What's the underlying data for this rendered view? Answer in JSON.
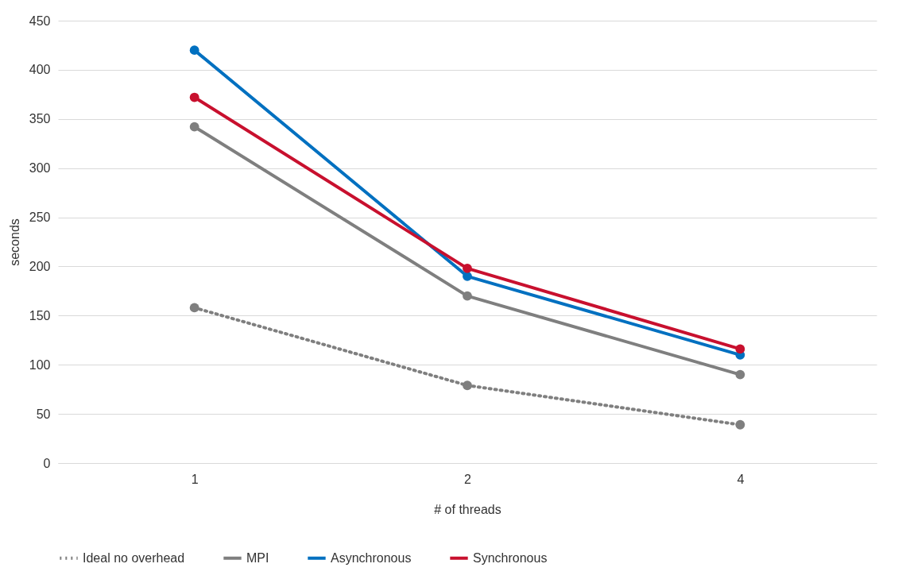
{
  "chart_data": {
    "type": "line",
    "xlabel": "# of threads",
    "ylabel": "seconds",
    "categories": [
      "1",
      "2",
      "4"
    ],
    "ylim": [
      0,
      450
    ],
    "yticks": [
      0,
      50,
      100,
      150,
      200,
      250,
      300,
      350,
      400,
      450
    ],
    "grid": "y",
    "legend": "bottom",
    "marker": "circle",
    "series": [
      {
        "name": "Ideal no overhead",
        "color": "#7f7f7f",
        "line_style": "dotted",
        "values": [
          158,
          79,
          39
        ]
      },
      {
        "name": "MPI",
        "color": "#7f7f7f",
        "line_style": "solid",
        "values": [
          342,
          170,
          90
        ]
      },
      {
        "name": "Asynchronous",
        "color": "#0070c0",
        "line_style": "solid",
        "values": [
          420,
          190,
          110
        ]
      },
      {
        "name": "Synchronous",
        "color": "#c8102e",
        "line_style": "solid",
        "values": [
          372,
          198,
          116
        ]
      }
    ]
  }
}
